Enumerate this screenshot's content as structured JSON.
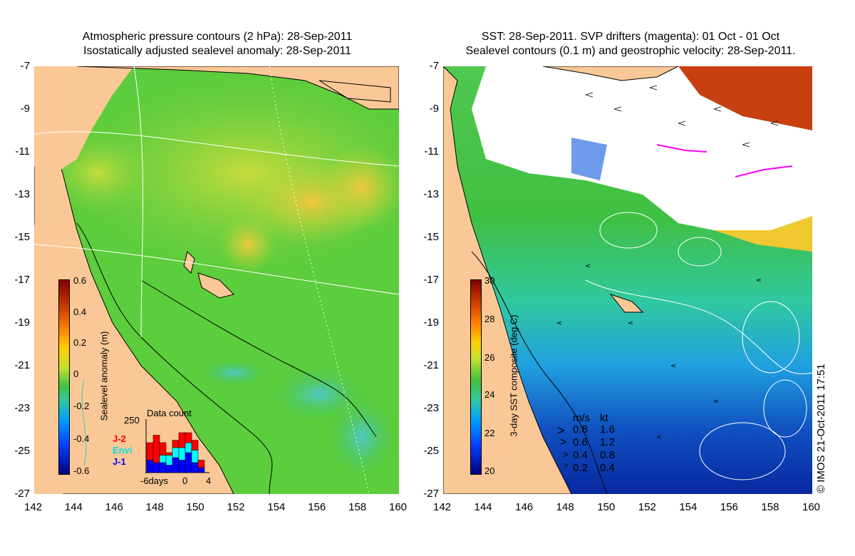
{
  "left": {
    "title_line1": "Atmospheric pressure contours (2 hPa): 28-Sep-2011",
    "title_line2": "Isostatically adjusted sealevel anomaly: 28-Sep-2011",
    "colorbar_label": "Sealevel anomaly (m)",
    "colorbar_ticks": [
      "0.6",
      "0.4",
      "0.2",
      "0",
      "-0.2",
      "-0.4",
      "-0.6"
    ],
    "inset": {
      "title": "Data count",
      "ymax": "250",
      "series": [
        {
          "name": "J-2",
          "color": "#ff0000"
        },
        {
          "name": "Envi",
          "color": "#00ffff"
        },
        {
          "name": "J-1",
          "color": "#0000ff"
        }
      ],
      "xlabels": [
        "-6days",
        "0",
        "4"
      ],
      "bars": [
        {
          "j1": 0.25,
          "envi": 0.0,
          "j2": 0.35
        },
        {
          "j1": 0.2,
          "envi": 0.0,
          "j2": 0.55
        },
        {
          "j1": 0.2,
          "envi": 0.15,
          "j2": 0.25
        },
        {
          "j1": 0.15,
          "envi": 0.2,
          "j2": 0.05
        },
        {
          "j1": 0.3,
          "envi": 0.2,
          "j2": 0.15
        },
        {
          "j1": 0.25,
          "envi": 0.25,
          "j2": 0.3
        },
        {
          "j1": 0.4,
          "envi": 0.2,
          "j2": 0.2
        },
        {
          "j1": 0.2,
          "envi": 0.25,
          "j2": 0.2
        },
        {
          "j1": 0.1,
          "envi": 0.0,
          "j2": 0.15
        }
      ]
    }
  },
  "right": {
    "title_line1": "SST: 28-Sep-2011. SVP drifters (magenta): 01 Oct - 01 Oct",
    "title_line2": "Sealevel contours (0.1 m) and geostrophic velocity: 28-Sep-2011.",
    "colorbar_label": "3-day SST composite (deg C)",
    "colorbar_ticks": [
      "30",
      "28",
      "26",
      "24",
      "22",
      "20"
    ],
    "velocity_header_ms": "m/s",
    "velocity_header_kt": "kt",
    "velocity_rows": [
      {
        "ms": "0.8",
        "kt": "1.6"
      },
      {
        "ms": "0.6",
        "kt": "1.2"
      },
      {
        "ms": "0.4",
        "kt": "0.8"
      },
      {
        "ms": "0.2",
        "kt": "0.4"
      }
    ]
  },
  "axes": {
    "y_ticks": [
      "-7",
      "-9",
      "-11",
      "-13",
      "-15",
      "-17",
      "-19",
      "-21",
      "-23",
      "-25",
      "-27"
    ],
    "x_ticks": [
      "142",
      "144",
      "146",
      "148",
      "150",
      "152",
      "154",
      "156",
      "158",
      "160"
    ]
  },
  "credit": "© IMOS 21-Oct-2011 17:51",
  "colors": {
    "land": "#f9c896",
    "ocean_green": "#3cc83c",
    "cloud": "#ffffff"
  }
}
